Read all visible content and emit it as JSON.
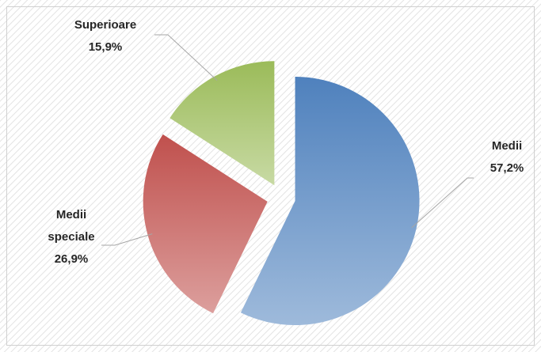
{
  "chart_data": {
    "type": "pie",
    "categories": [
      "Medii",
      "Medii speciale",
      "Superioare"
    ],
    "values": [
      57.2,
      26.9,
      15.9
    ],
    "value_labels": [
      "57,2%",
      "26,9%",
      "15,9%"
    ],
    "colors": [
      "#4f81bd",
      "#c0504d",
      "#9bbb59"
    ]
  }
}
